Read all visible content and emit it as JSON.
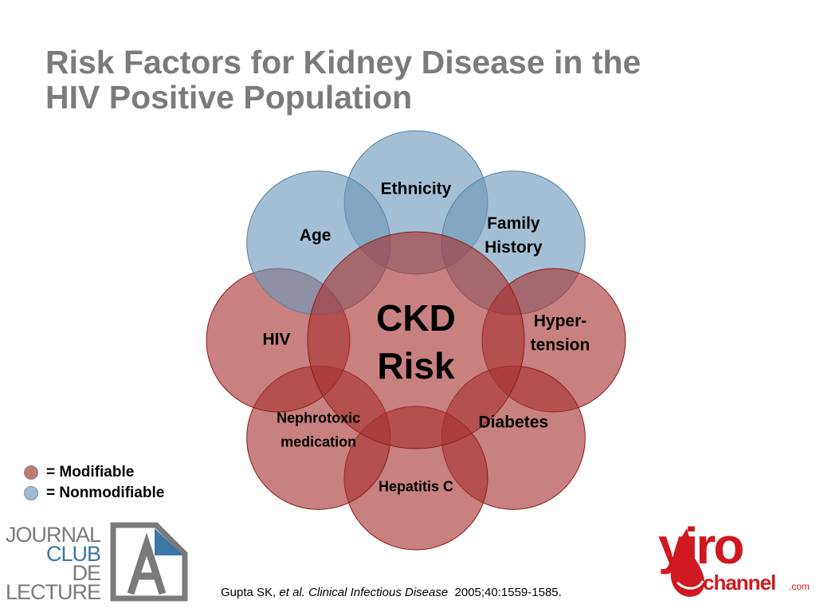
{
  "slide": {
    "title_line1": "Risk Factors for Kidney Disease in the",
    "title_line2": "HIV Positive Population"
  },
  "diagram": {
    "center": {
      "line1": "CKD",
      "line2": "Risk",
      "category": "modifiable"
    },
    "factors": [
      {
        "id": "ethnicity",
        "lines": [
          "Ethnicity"
        ],
        "category": "nonmodifiable"
      },
      {
        "id": "family-history",
        "lines": [
          "Family",
          "History"
        ],
        "category": "nonmodifiable"
      },
      {
        "id": "hypertension",
        "lines": [
          "Hyper-",
          "tension"
        ],
        "category": "modifiable"
      },
      {
        "id": "diabetes",
        "lines": [
          "Diabetes"
        ],
        "category": "modifiable"
      },
      {
        "id": "hepatitis-c",
        "lines": [
          "Hepatitis C"
        ],
        "category": "modifiable"
      },
      {
        "id": "nephrotoxic-medication",
        "lines": [
          "Nephrotoxic",
          "medication"
        ],
        "category": "modifiable"
      },
      {
        "id": "hiv",
        "lines": [
          "HIV"
        ],
        "category": "modifiable"
      },
      {
        "id": "age",
        "lines": [
          "Age"
        ],
        "category": "nonmodifiable"
      }
    ],
    "colors": {
      "modifiable_fill": "#a83232",
      "modifiable_stroke": "#8b1a1a",
      "nonmodifiable_fill": "#6c98b8",
      "nonmodifiable_stroke": "#557f9e"
    }
  },
  "legend": {
    "modifiable_label": "= Modifiable",
    "nonmodifiable_label": "= Nonmodifiable",
    "modifiable_color": "#c17878",
    "nonmodifiable_color": "#9dbbd0"
  },
  "citation": {
    "authors": "Gupta SK,",
    "etal": "et al.",
    "journal": "Clinical Infectious Disease",
    "ref": "2005;40:1559-1585."
  },
  "logos": {
    "journal_club": {
      "line1": "JOURNAL",
      "line2": "CLUB",
      "line3": "DE",
      "line4": "LECTURE",
      "mark": "A"
    },
    "yiro": {
      "name": "yiro",
      "sub": "channel",
      "suffix": ".com"
    }
  }
}
